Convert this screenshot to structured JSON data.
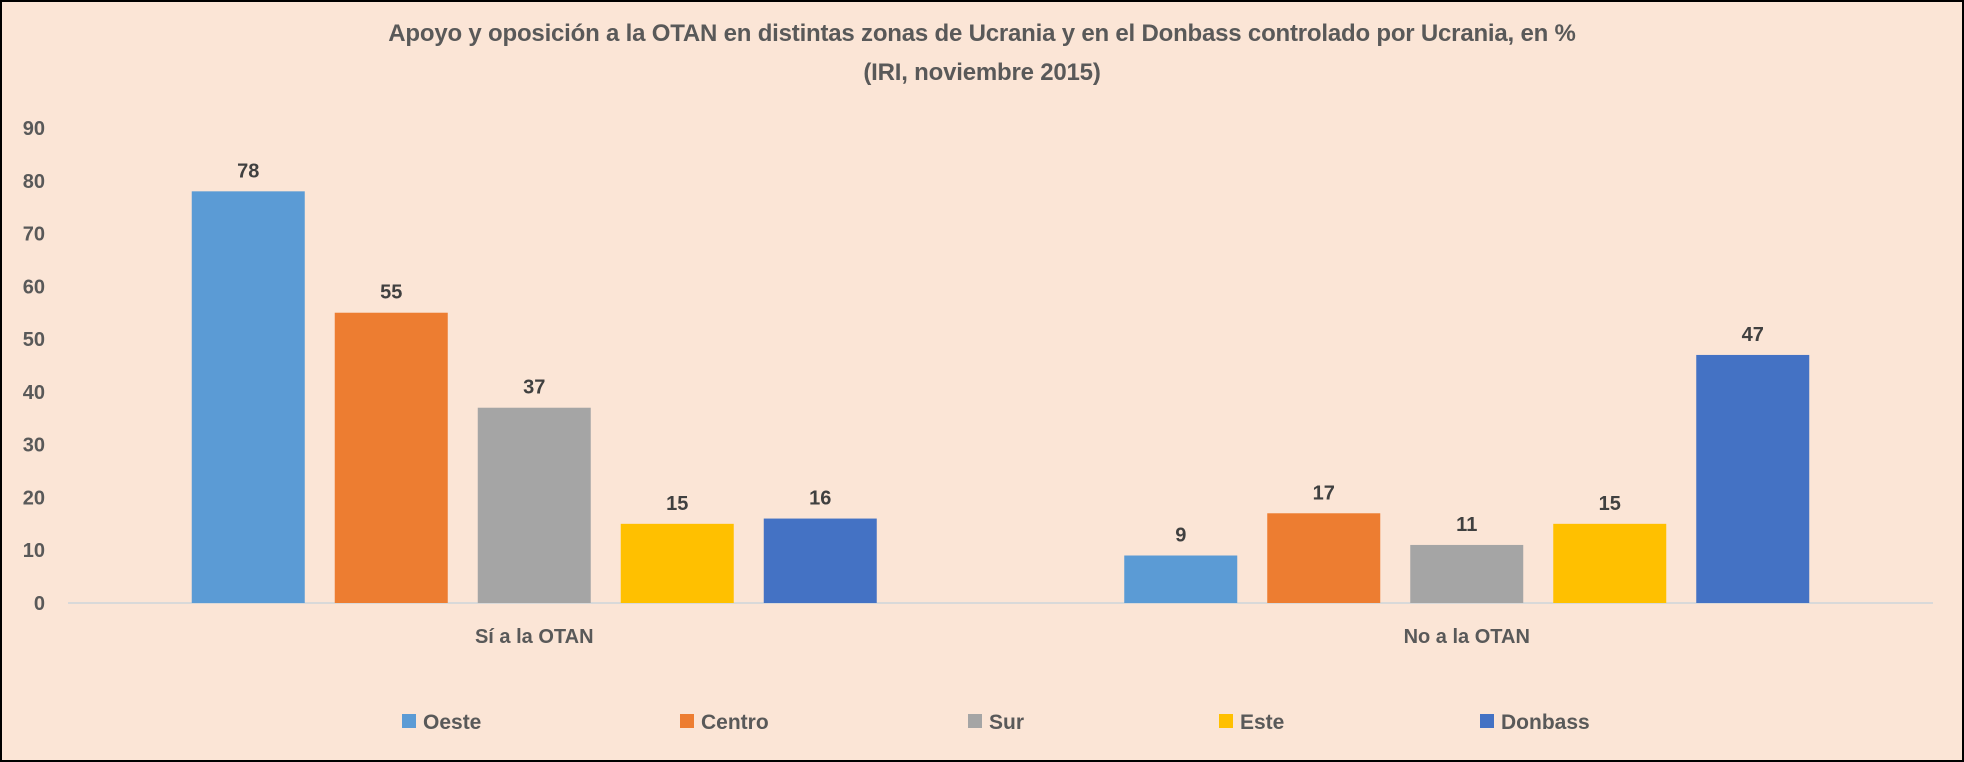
{
  "chart_data": {
    "type": "bar",
    "title": "Apoyo y oposición a la OTAN en distintas zonas de Ucrania y en el Donbass controlado por Ucrania, en %",
    "subtitle": "(IRI, noviembre 2015)",
    "xlabel": "",
    "ylabel": "",
    "categories": [
      "Sí a la OTAN",
      "No a la OTAN"
    ],
    "series": [
      {
        "name": "Oeste",
        "color": "#5B9BD5",
        "values": [
          78,
          9
        ]
      },
      {
        "name": "Centro",
        "color": "#ED7D31",
        "values": [
          55,
          17
        ]
      },
      {
        "name": "Sur",
        "color": "#A5A5A5",
        "values": [
          37,
          11
        ]
      },
      {
        "name": "Este",
        "color": "#FFC000",
        "values": [
          15,
          15
        ]
      },
      {
        "name": "Donbass",
        "color": "#4472C4",
        "values": [
          16,
          47
        ]
      }
    ],
    "ylim": [
      0,
      90
    ],
    "yticks": [
      0,
      10,
      20,
      30,
      40,
      50,
      60,
      70,
      80,
      90
    ],
    "grid": false,
    "data_labels": true,
    "legend_position": "bottom"
  },
  "colors": {
    "background": "#FBE5D6",
    "axis_line": "#D9D9D9",
    "text": "#595959"
  }
}
